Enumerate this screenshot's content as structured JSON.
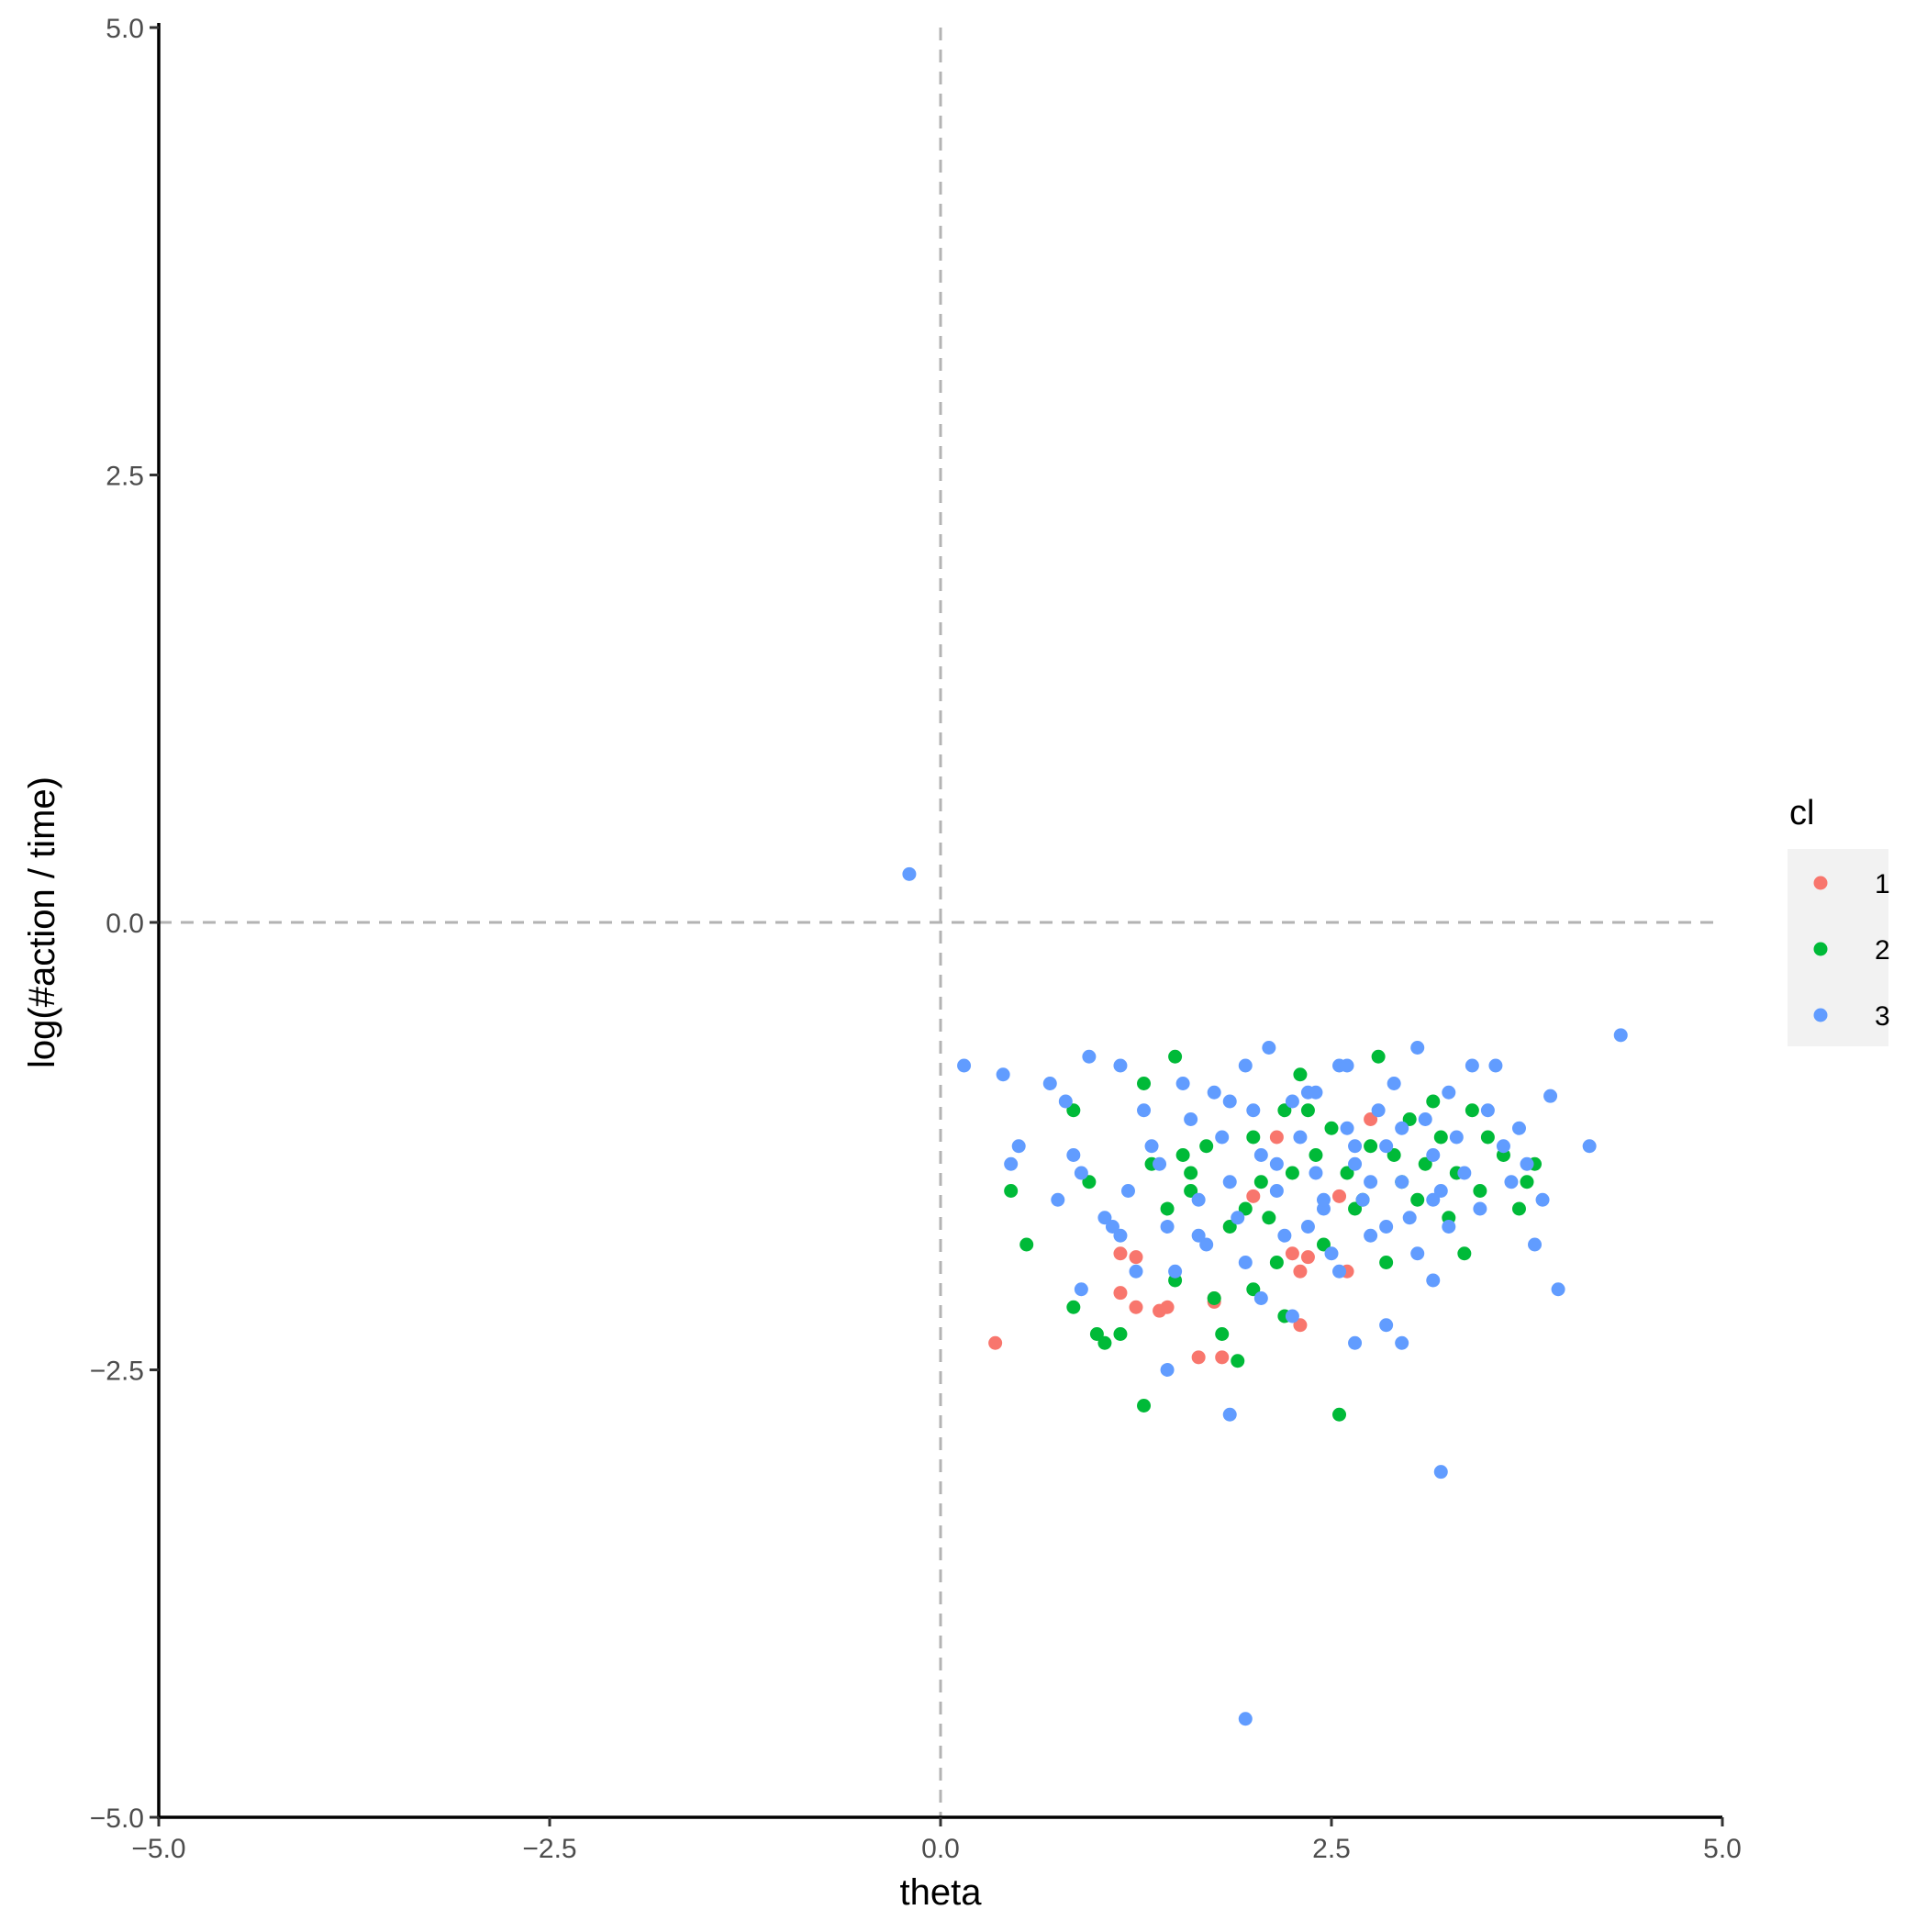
{
  "chart_data": {
    "type": "scatter",
    "title": "",
    "xlabel": "theta",
    "ylabel": "log(#action / time)",
    "xlim": [
      -5,
      5
    ],
    "ylim": [
      -5,
      5
    ],
    "x_ticks": [
      "−5.0",
      "−2.5",
      "0.0",
      "2.5",
      "5.0"
    ],
    "y_ticks": [
      "5.0",
      "2.5",
      "0.0",
      "−2.5",
      "−5.0"
    ],
    "x_tick_values": [
      -5,
      -2.5,
      0,
      2.5,
      5
    ],
    "y_tick_values": [
      5,
      2.5,
      0,
      -2.5,
      -5
    ],
    "reference_lines": {
      "vertical_x": 0,
      "horizontal_y": 0,
      "style": "dashed",
      "color": "#b3b3b3"
    },
    "grid": false,
    "legend": {
      "title": "cl",
      "position": "right",
      "entries": [
        {
          "label": "1",
          "color": "#F8766D"
        },
        {
          "label": "2",
          "color": "#00BA38"
        },
        {
          "label": "3",
          "color": "#619CFF"
        }
      ]
    },
    "series": [
      {
        "name": "1",
        "color": "#F8766D",
        "points": [
          [
            0.35,
            -2.35
          ],
          [
            1.15,
            -1.85
          ],
          [
            1.25,
            -1.87
          ],
          [
            1.15,
            -2.07
          ],
          [
            1.25,
            -2.15
          ],
          [
            1.4,
            -2.17
          ],
          [
            1.45,
            -2.15
          ],
          [
            1.65,
            -2.43
          ],
          [
            1.8,
            -2.43
          ],
          [
            1.75,
            -2.1
          ],
          [
            2.0,
            -1.53
          ],
          [
            2.15,
            -1.2
          ],
          [
            2.25,
            -1.85
          ],
          [
            2.3,
            -1.95
          ],
          [
            2.3,
            -2.25
          ],
          [
            2.55,
            -1.53
          ],
          [
            2.6,
            -1.95
          ],
          [
            2.75,
            -1.1
          ],
          [
            1.75,
            -2.12
          ],
          [
            2.35,
            -1.87
          ]
        ]
      },
      {
        "name": "2",
        "color": "#00BA38",
        "points": [
          [
            0.45,
            -1.5
          ],
          [
            0.55,
            -1.8
          ],
          [
            0.85,
            -1.05
          ],
          [
            0.95,
            -1.45
          ],
          [
            0.85,
            -2.15
          ],
          [
            1.0,
            -2.3
          ],
          [
            1.05,
            -2.35
          ],
          [
            1.15,
            -2.3
          ],
          [
            1.3,
            -0.9
          ],
          [
            1.35,
            -1.35
          ],
          [
            1.45,
            -1.6
          ],
          [
            1.5,
            -0.75
          ],
          [
            1.55,
            -1.3
          ],
          [
            1.6,
            -1.5
          ],
          [
            1.7,
            -1.25
          ],
          [
            1.75,
            -2.1
          ],
          [
            1.8,
            -2.3
          ],
          [
            1.85,
            -1.7
          ],
          [
            1.9,
            -2.45
          ],
          [
            1.95,
            -1.6
          ],
          [
            2.0,
            -1.2
          ],
          [
            2.05,
            -1.45
          ],
          [
            2.1,
            -1.65
          ],
          [
            2.15,
            -1.9
          ],
          [
            2.2,
            -2.2
          ],
          [
            2.25,
            -1.4
          ],
          [
            2.3,
            -0.85
          ],
          [
            2.35,
            -1.05
          ],
          [
            2.4,
            -1.3
          ],
          [
            2.45,
            -1.8
          ],
          [
            2.5,
            -1.15
          ],
          [
            2.55,
            -2.75
          ],
          [
            2.6,
            -1.4
          ],
          [
            2.65,
            -1.6
          ],
          [
            2.7,
            -1.55
          ],
          [
            2.75,
            -1.25
          ],
          [
            2.8,
            -0.75
          ],
          [
            2.85,
            -1.9
          ],
          [
            2.9,
            -1.3
          ],
          [
            2.95,
            -1.45
          ],
          [
            3.0,
            -1.1
          ],
          [
            3.05,
            -1.55
          ],
          [
            3.1,
            -1.35
          ],
          [
            3.15,
            -1.0
          ],
          [
            3.2,
            -1.2
          ],
          [
            3.25,
            -1.65
          ],
          [
            3.3,
            -1.4
          ],
          [
            3.35,
            -1.85
          ],
          [
            3.4,
            -1.05
          ],
          [
            3.45,
            -1.5
          ],
          [
            3.5,
            -1.2
          ],
          [
            3.6,
            -1.3
          ],
          [
            3.7,
            -1.6
          ],
          [
            3.75,
            -1.45
          ],
          [
            3.8,
            -1.35
          ],
          [
            1.3,
            -2.7
          ],
          [
            1.5,
            -2.0
          ],
          [
            1.6,
            -1.4
          ],
          [
            2.2,
            -1.05
          ],
          [
            2.0,
            -2.05
          ]
        ]
      },
      {
        "name": "3",
        "color": "#619CFF",
        "points": [
          [
            -0.2,
            0.27
          ],
          [
            0.15,
            -0.8
          ],
          [
            0.4,
            -0.85
          ],
          [
            0.45,
            -1.35
          ],
          [
            0.5,
            -1.25
          ],
          [
            0.7,
            -0.9
          ],
          [
            0.75,
            -1.55
          ],
          [
            0.8,
            -1.0
          ],
          [
            0.85,
            -1.3
          ],
          [
            0.9,
            -1.4
          ],
          [
            0.95,
            -0.75
          ],
          [
            1.05,
            -1.65
          ],
          [
            1.1,
            -1.7
          ],
          [
            1.15,
            -0.8
          ],
          [
            1.2,
            -1.5
          ],
          [
            1.3,
            -1.05
          ],
          [
            1.35,
            -1.25
          ],
          [
            1.4,
            -1.35
          ],
          [
            1.45,
            -1.7
          ],
          [
            1.5,
            -1.95
          ],
          [
            1.55,
            -0.9
          ],
          [
            1.6,
            -1.1
          ],
          [
            1.65,
            -1.55
          ],
          [
            1.7,
            -1.8
          ],
          [
            1.75,
            -0.95
          ],
          [
            1.8,
            -1.2
          ],
          [
            1.85,
            -1.45
          ],
          [
            1.9,
            -1.65
          ],
          [
            1.95,
            -0.8
          ],
          [
            2.0,
            -1.05
          ],
          [
            2.05,
            -1.3
          ],
          [
            2.1,
            -0.7
          ],
          [
            2.15,
            -1.5
          ],
          [
            2.2,
            -1.75
          ],
          [
            2.25,
            -1.0
          ],
          [
            2.3,
            -1.2
          ],
          [
            2.35,
            -0.95
          ],
          [
            2.4,
            -1.4
          ],
          [
            2.45,
            -1.6
          ],
          [
            2.5,
            -1.85
          ],
          [
            2.55,
            -0.8
          ],
          [
            2.6,
            -1.15
          ],
          [
            2.65,
            -1.35
          ],
          [
            2.7,
            -1.55
          ],
          [
            2.75,
            -1.75
          ],
          [
            2.8,
            -1.05
          ],
          [
            2.85,
            -1.25
          ],
          [
            2.9,
            -0.9
          ],
          [
            2.95,
            -1.45
          ],
          [
            3.0,
            -1.65
          ],
          [
            3.05,
            -0.7
          ],
          [
            3.1,
            -1.1
          ],
          [
            3.15,
            -1.3
          ],
          [
            3.2,
            -1.5
          ],
          [
            3.25,
            -0.95
          ],
          [
            3.3,
            -1.2
          ],
          [
            3.35,
            -1.4
          ],
          [
            3.4,
            -0.8
          ],
          [
            3.45,
            -1.6
          ],
          [
            3.5,
            -1.05
          ],
          [
            3.55,
            -0.8
          ],
          [
            3.6,
            -1.25
          ],
          [
            3.65,
            -1.45
          ],
          [
            3.7,
            -1.15
          ],
          [
            3.75,
            -1.35
          ],
          [
            3.8,
            -1.8
          ],
          [
            3.85,
            -1.55
          ],
          [
            3.9,
            -0.97
          ],
          [
            3.95,
            -2.05
          ],
          [
            4.15,
            -1.25
          ],
          [
            4.35,
            -0.63
          ],
          [
            1.45,
            -2.5
          ],
          [
            1.85,
            -2.75
          ],
          [
            1.95,
            -4.45
          ],
          [
            3.2,
            -3.07
          ],
          [
            2.65,
            -2.35
          ],
          [
            2.95,
            -2.35
          ],
          [
            2.25,
            -2.2
          ],
          [
            2.55,
            -1.95
          ],
          [
            2.85,
            -1.7
          ],
          [
            3.05,
            -1.85
          ],
          [
            3.25,
            -1.7
          ],
          [
            2.45,
            -1.55
          ],
          [
            2.65,
            -1.25
          ],
          [
            2.75,
            -1.45
          ],
          [
            2.95,
            -1.15
          ],
          [
            3.15,
            -1.55
          ],
          [
            2.35,
            -1.7
          ],
          [
            2.15,
            -1.35
          ],
          [
            1.95,
            -1.9
          ],
          [
            2.05,
            -2.1
          ],
          [
            1.65,
            -1.75
          ],
          [
            1.85,
            -1.0
          ],
          [
            2.85,
            -2.25
          ],
          [
            3.15,
            -2.0
          ],
          [
            1.25,
            -1.95
          ],
          [
            1.15,
            -1.75
          ],
          [
            0.9,
            -2.05
          ],
          [
            2.6,
            -0.8
          ],
          [
            2.4,
            -0.95
          ]
        ]
      }
    ]
  }
}
